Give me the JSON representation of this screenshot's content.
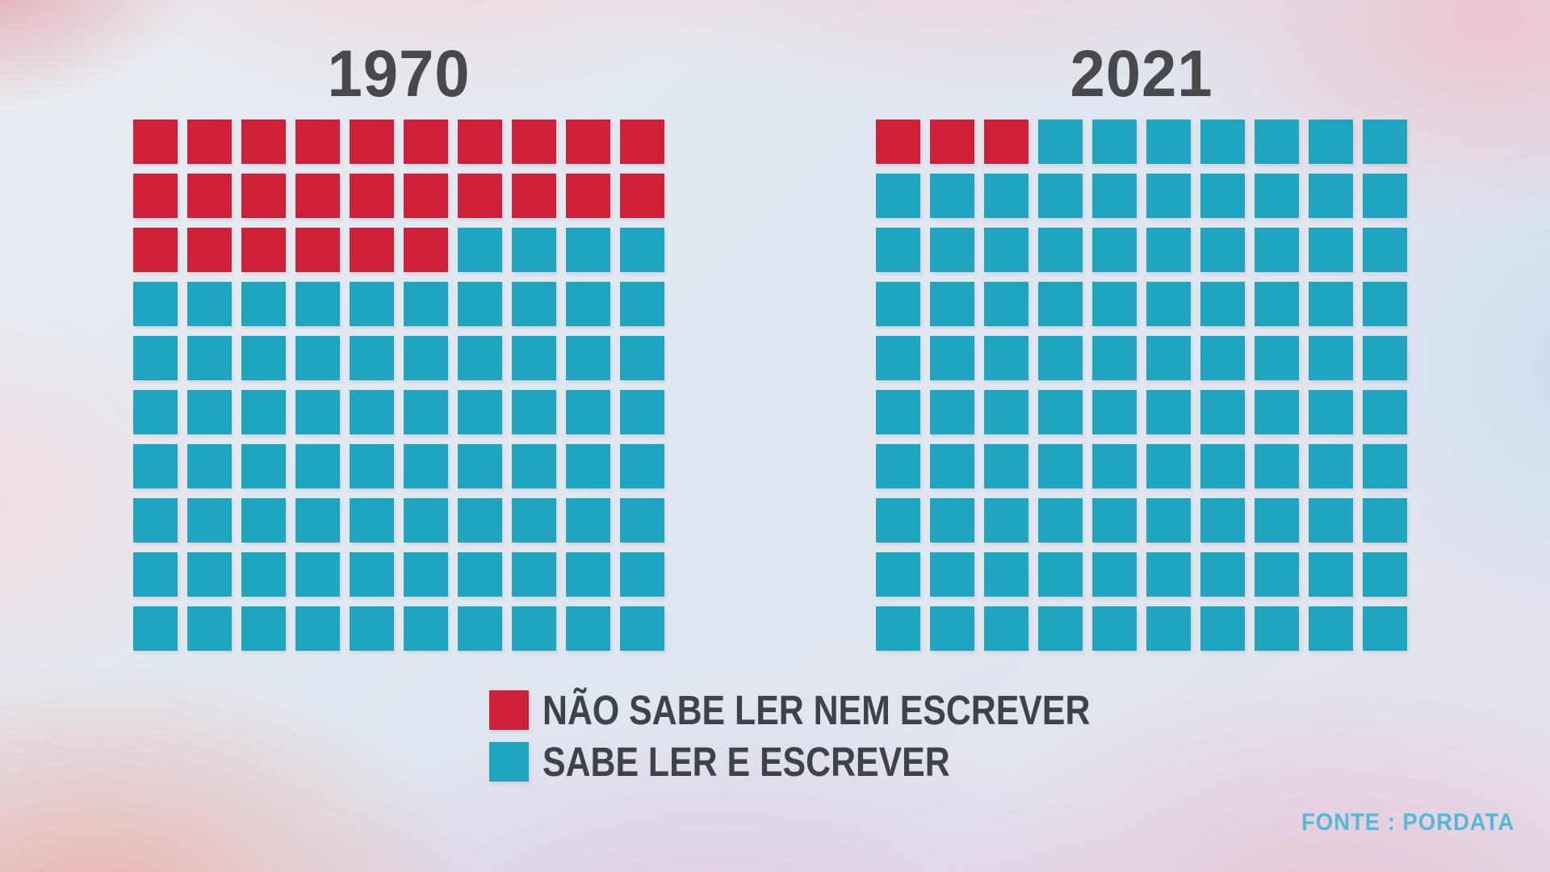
{
  "colors": {
    "illiterate_red": "#ce2139",
    "literate_teal": "#1fa5bf",
    "title_gray": "#47494c",
    "legend_text": "#3e4347",
    "source_teal": "#55b8d6"
  },
  "legend": {
    "items": [
      {
        "key": "nao-sabe-ler",
        "label": "NÃO SABE LER NEM ESCREVER",
        "color": "#ce2139"
      },
      {
        "key": "sabe-ler",
        "label": "SABE LER E ESCREVER",
        "color": "#1fa5bf"
      }
    ]
  },
  "source": {
    "label": "FONTE : PORDATA",
    "color": "#55b8d6"
  },
  "chart_data": [
    {
      "type": "waffle",
      "title": "1970",
      "grid": {
        "rows": 10,
        "cols": 10,
        "total_cells": 100
      },
      "fill_order": "row-major-from-top-left",
      "units": "percent (1 square = 1%)",
      "series": [
        {
          "key": "nao-sabe-ler",
          "name": "NÃO SABE LER NEM ESCREVER",
          "value": 26,
          "color": "#ce2139"
        },
        {
          "key": "sabe-ler",
          "name": "SABE LER E ESCREVER",
          "value": 74,
          "color": "#1fa5bf"
        }
      ]
    },
    {
      "type": "waffle",
      "title": "2021",
      "grid": {
        "rows": 10,
        "cols": 10,
        "total_cells": 100
      },
      "fill_order": "row-major-from-top-left",
      "units": "percent (1 square = 1%)",
      "series": [
        {
          "key": "nao-sabe-ler",
          "name": "NÃO SABE LER NEM ESCREVER",
          "value": 3,
          "color": "#ce2139"
        },
        {
          "key": "sabe-ler",
          "name": "SABE LER E ESCREVER",
          "value": 97,
          "color": "#1fa5bf"
        }
      ]
    }
  ]
}
